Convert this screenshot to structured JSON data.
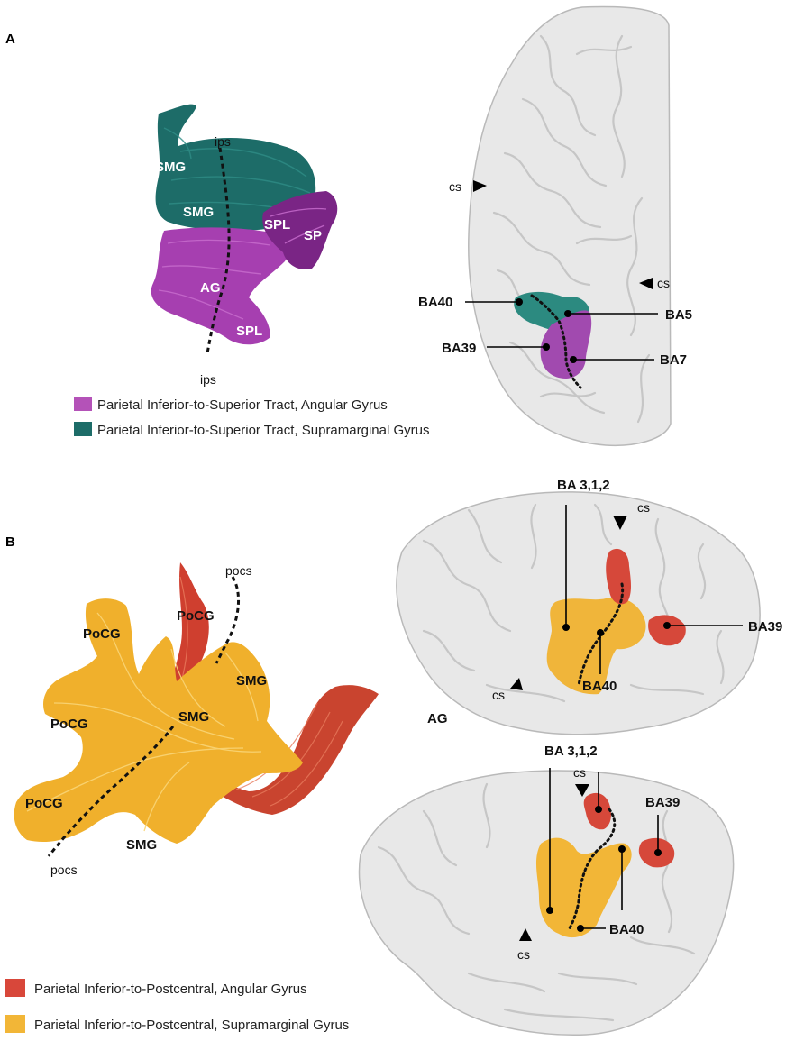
{
  "colors": {
    "ag_superior": "#b452b8",
    "smg_superior": "#1d6c68",
    "ag_postcentral": "#d8473a",
    "smg_postcentral": "#f2b637",
    "brain": "#e8e8e8"
  },
  "panel_a": {
    "letter": "A",
    "tract_labels": {
      "smg_top": "SMG",
      "smg_mid": "SMG",
      "spl_upper": "SPL",
      "sp": "SP",
      "ag": "AG",
      "spl_lower": "SPL",
      "ips_top": "ips",
      "ips_bottom": "ips"
    },
    "brain_labels": {
      "cs_left": "cs",
      "cs_right": "cs",
      "ba40": "BA40",
      "ba5": "BA5",
      "ba39": "BA39",
      "ba7": "BA7"
    },
    "legend": [
      {
        "label": "Parietal Inferior-to-Superior Tract, Angular Gyrus",
        "color": "#b452b8"
      },
      {
        "label": "Parietal Inferior-to-Superior Tract, Supramarginal Gyrus",
        "color": "#1d6c68"
      }
    ]
  },
  "panel_b": {
    "letter": "B",
    "tract_labels": {
      "docs_top": "pocs",
      "docs_bottom": "pocs",
      "pocg_top_right": "PoCG",
      "pocg_top_left": "PoCG",
      "pocg_mid": "PoCG",
      "pocg_low": "PoCG",
      "smg_right": "SMG",
      "smg_mid": "SMG",
      "smg_bottom": "SMG",
      "ag": "AG"
    },
    "top_brain_labels": {
      "ba312": "BA 3,1,2",
      "cs_top": "cs",
      "ba39": "BA39",
      "cs_left": "cs",
      "ba40": "BA40"
    },
    "bottom_brain_labels": {
      "ba312": "BA 3,1,2",
      "cs_top": "cs",
      "ba39": "BA39",
      "ba40": "BA40",
      "cs_bottom": "cs"
    },
    "legend": [
      {
        "label": "Parietal Inferior-to-Postcentral, Angular Gyrus",
        "color": "#d8473a"
      },
      {
        "label": "Parietal Inferior-to-Postcentral, Supramarginal Gyrus",
        "color": "#f2b637"
      }
    ]
  }
}
